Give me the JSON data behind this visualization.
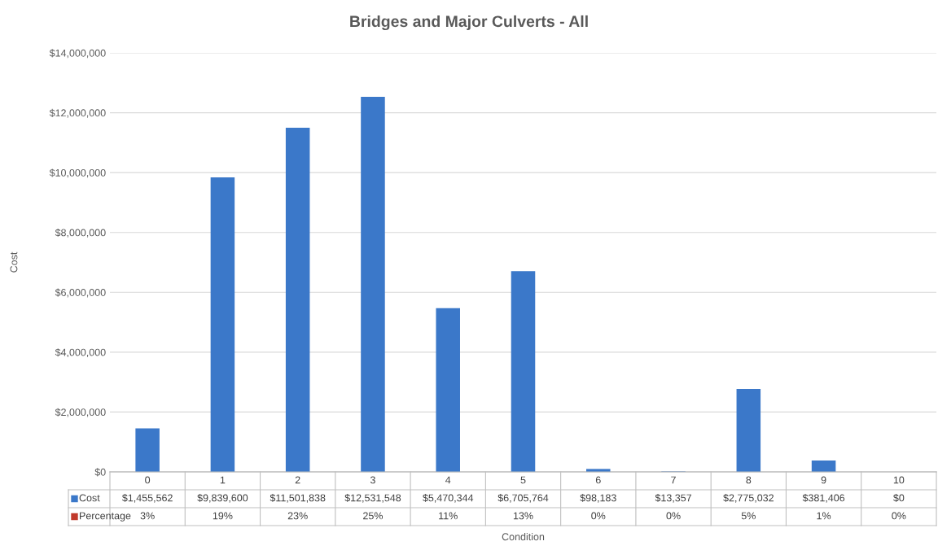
{
  "chart_data": {
    "type": "bar",
    "title": "Bridges and Major Culverts - All",
    "xlabel": "Condition",
    "ylabel": "Cost",
    "categories": [
      "0",
      "1",
      "2",
      "3",
      "4",
      "5",
      "6",
      "7",
      "8",
      "9",
      "10"
    ],
    "series": [
      {
        "name": "Cost",
        "color": "#3b78c9",
        "values": [
          1455562,
          9839600,
          11501838,
          12531548,
          5470344,
          6705764,
          98183,
          13357,
          2775032,
          381406,
          0
        ],
        "value_labels": [
          "$1,455,562",
          "$9,839,600",
          "$11,501,838",
          "$12,531,548",
          "$5,470,344",
          "$6,705,764",
          "$98,183",
          "$13,357",
          "$2,775,032",
          "$381,406",
          "$0"
        ]
      },
      {
        "name": "Percentage",
        "color": "#c0392b",
        "values": [
          null,
          null,
          null,
          null,
          null,
          null,
          null,
          null,
          null,
          null,
          null
        ],
        "value_labels": [
          "3%",
          "19%",
          "23%",
          "25%",
          "11%",
          "13%",
          "0%",
          "0%",
          "5%",
          "1%",
          "0%"
        ]
      }
    ],
    "ylim": [
      0,
      14000000
    ],
    "yticks": [
      {
        "value": 0,
        "label": "$0"
      },
      {
        "value": 2000000,
        "label": "$2,000,000"
      },
      {
        "value": 4000000,
        "label": "$4,000,000"
      },
      {
        "value": 6000000,
        "label": "$6,000,000"
      },
      {
        "value": 8000000,
        "label": "$8,000,000"
      },
      {
        "value": 10000000,
        "label": "$10,000,000"
      },
      {
        "value": 12000000,
        "label": "$12,000,000"
      },
      {
        "value": 14000000,
        "label": "$14,000,000"
      }
    ],
    "grid": "y",
    "legend": "bottom left"
  }
}
